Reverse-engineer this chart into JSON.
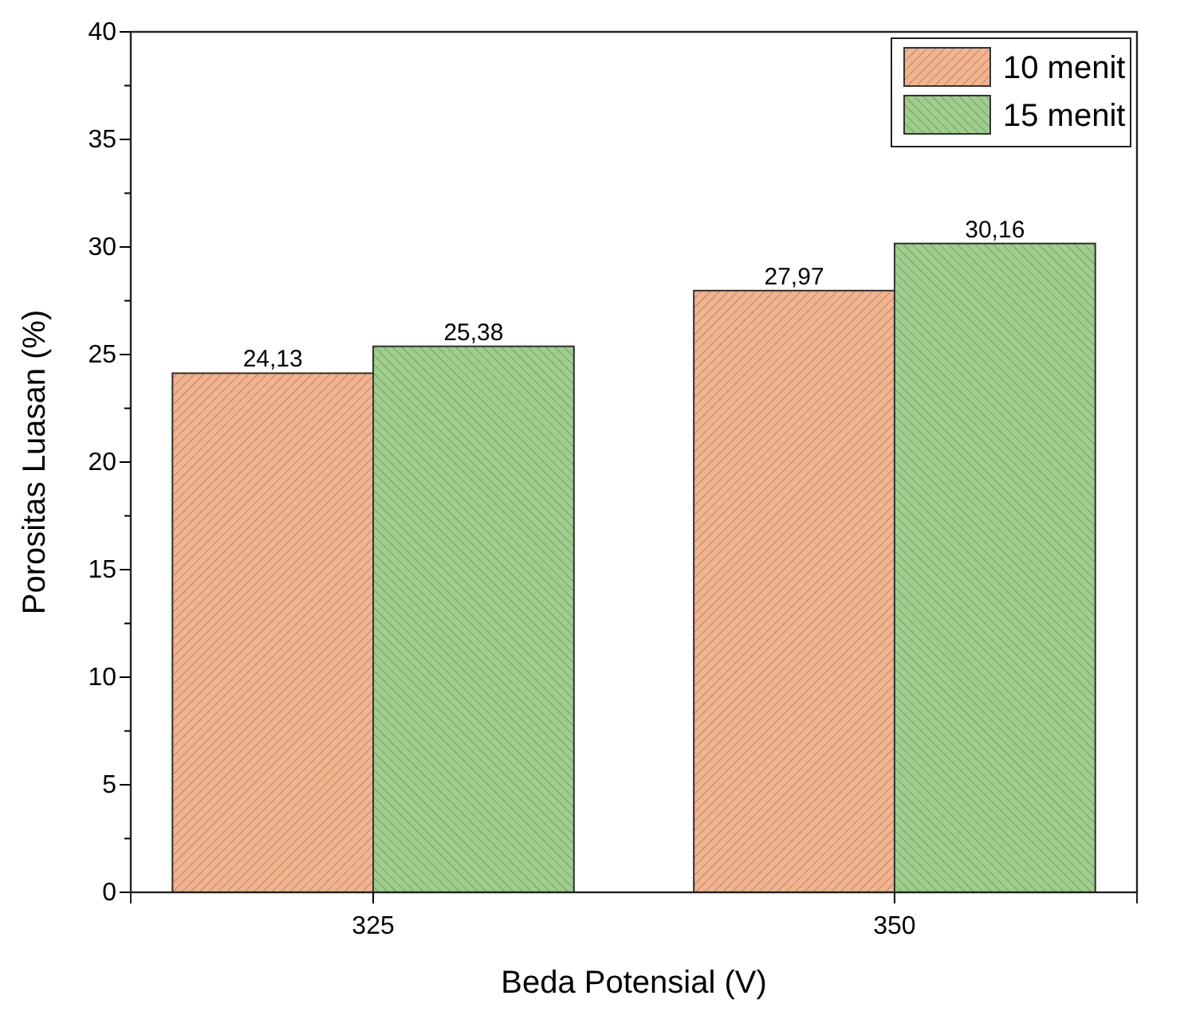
{
  "chart_data": {
    "type": "bar",
    "xlabel": "Beda Potensial (V)",
    "ylabel": "Porositas Luasan (%)",
    "categories": [
      "325",
      "350"
    ],
    "series": [
      {
        "name": "10 menit",
        "color": "#f2b48e",
        "values": [
          24.13,
          27.97
        ],
        "value_labels": [
          "24,13",
          "27,97"
        ]
      },
      {
        "name": "15 menit",
        "color": "#9fce8c",
        "values": [
          25.38,
          30.16
        ],
        "value_labels": [
          "25,38",
          "30,16"
        ]
      }
    ],
    "ylim": [
      0,
      40
    ],
    "yticks": [
      0,
      {
        "value": 2.5,
        "label": null
      },
      5,
      {
        "value": 7.5,
        "label": null
      },
      10,
      {
        "value": 12.5,
        "label": null
      },
      15,
      {
        "value": 17.5,
        "label": null
      },
      20,
      {
        "value": 22.5,
        "label": null
      },
      25,
      {
        "value": 27.5,
        "label": null
      },
      30,
      {
        "value": 32.5,
        "label": null
      },
      35,
      {
        "value": 37.5,
        "label": null
      },
      40
    ],
    "grid": false,
    "legend": "top right"
  }
}
